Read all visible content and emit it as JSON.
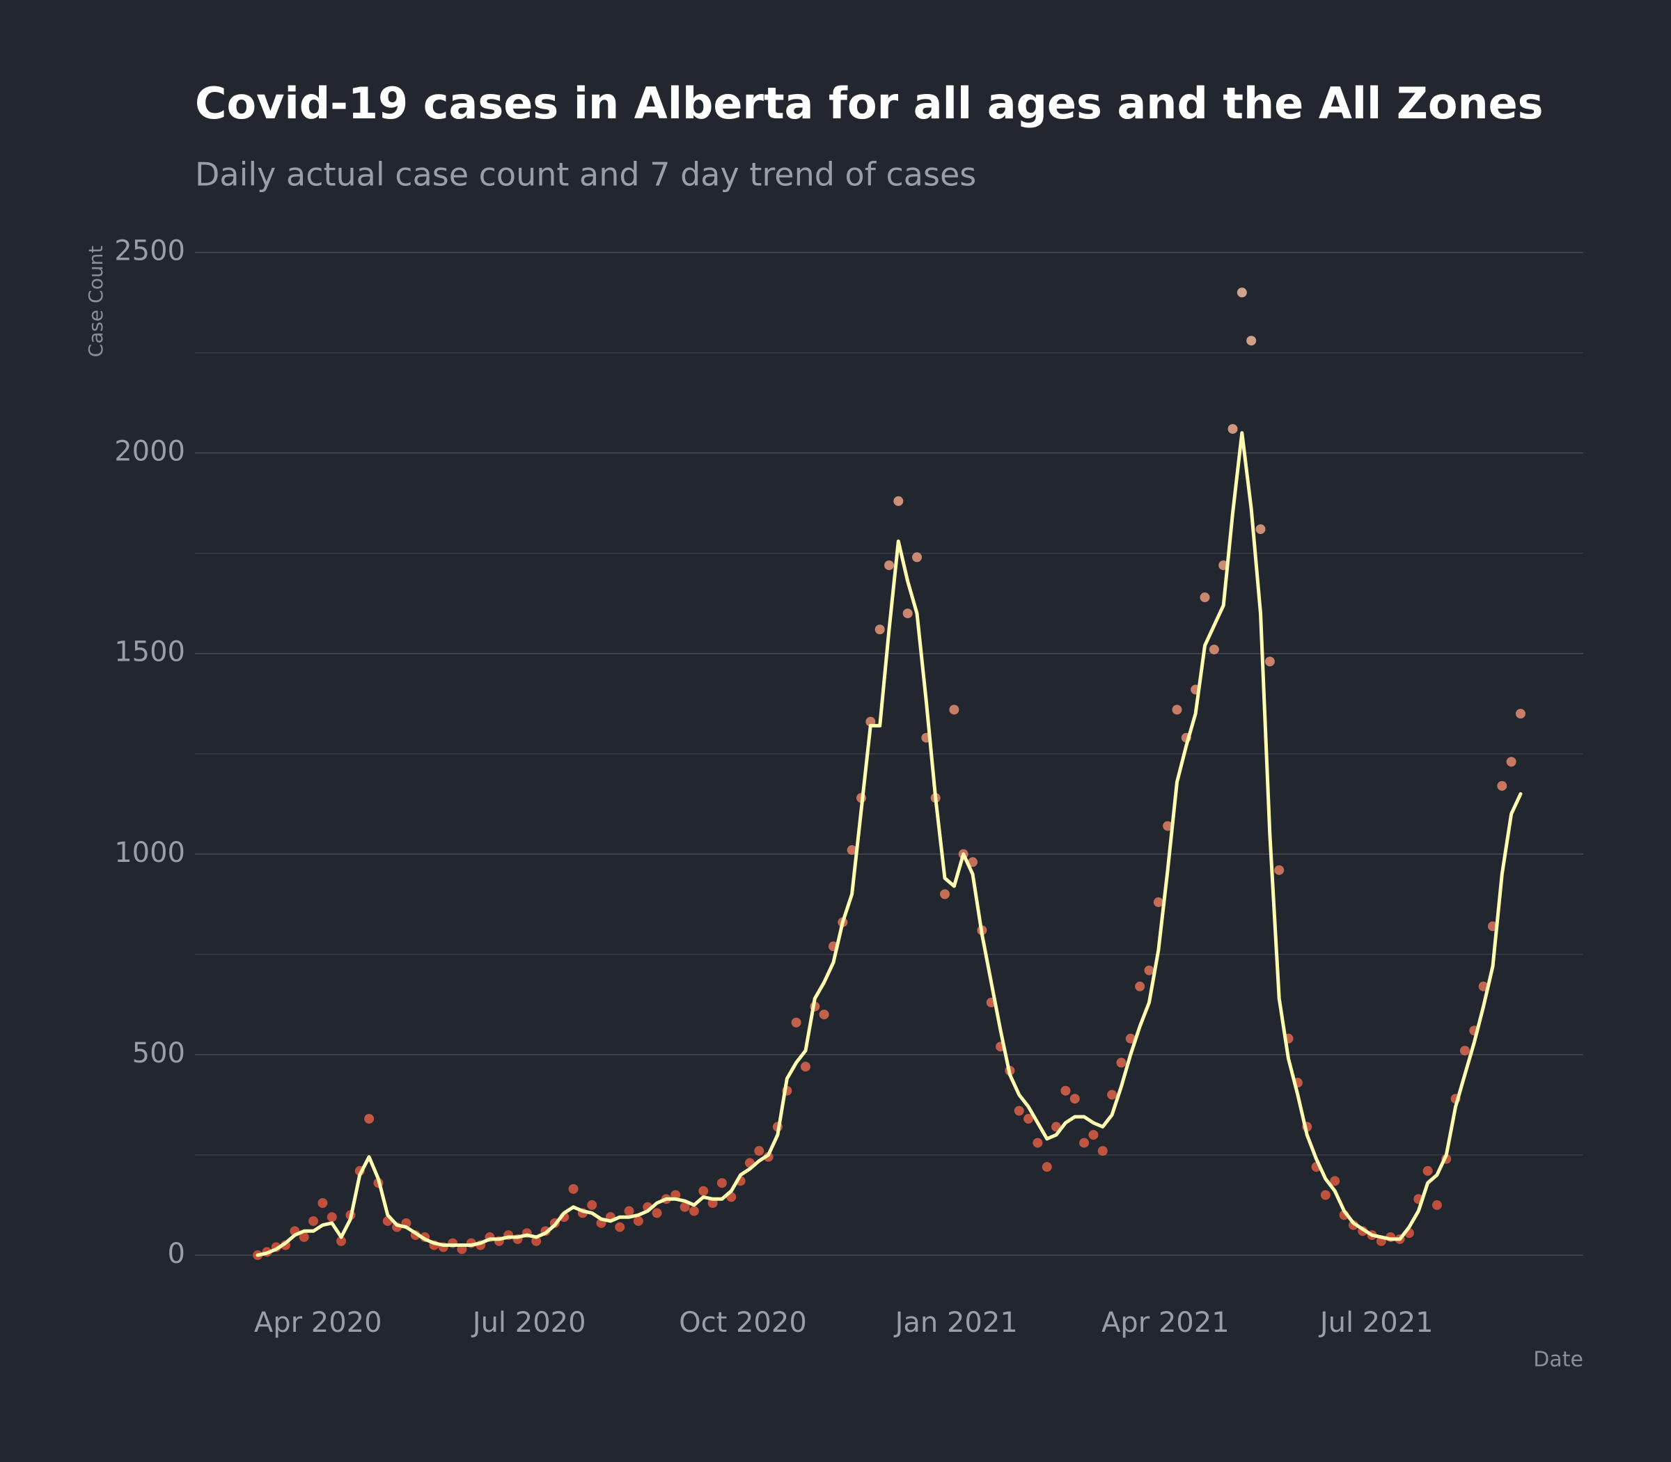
{
  "chart_data": {
    "type": "scatter",
    "title": "Covid-19 cases in Alberta for all ages and the All Zones",
    "subtitle": "Daily actual case count and 7 day trend of cases",
    "y_label": "Case Count",
    "x_label": "Date",
    "x": [
      "2020-03-06",
      "2020-03-10",
      "2020-03-14",
      "2020-03-18",
      "2020-03-22",
      "2020-03-26",
      "2020-03-30",
      "2020-04-03",
      "2020-04-07",
      "2020-04-11",
      "2020-04-15",
      "2020-04-19",
      "2020-04-23",
      "2020-04-27",
      "2020-05-01",
      "2020-05-05",
      "2020-05-09",
      "2020-05-13",
      "2020-05-17",
      "2020-05-21",
      "2020-05-25",
      "2020-05-29",
      "2020-06-02",
      "2020-06-06",
      "2020-06-10",
      "2020-06-14",
      "2020-06-18",
      "2020-06-22",
      "2020-06-26",
      "2020-06-30",
      "2020-07-04",
      "2020-07-08",
      "2020-07-12",
      "2020-07-16",
      "2020-07-20",
      "2020-07-24",
      "2020-07-28",
      "2020-08-01",
      "2020-08-05",
      "2020-08-09",
      "2020-08-13",
      "2020-08-17",
      "2020-08-21",
      "2020-08-25",
      "2020-08-29",
      "2020-09-02",
      "2020-09-06",
      "2020-09-10",
      "2020-09-14",
      "2020-09-18",
      "2020-09-22",
      "2020-09-26",
      "2020-09-30",
      "2020-10-04",
      "2020-10-08",
      "2020-10-12",
      "2020-10-16",
      "2020-10-20",
      "2020-10-24",
      "2020-10-28",
      "2020-11-01",
      "2020-11-05",
      "2020-11-09",
      "2020-11-13",
      "2020-11-17",
      "2020-11-21",
      "2020-11-25",
      "2020-11-29",
      "2020-12-03",
      "2020-12-07",
      "2020-12-11",
      "2020-12-15",
      "2020-12-19",
      "2020-12-23",
      "2020-12-27",
      "2020-12-31",
      "2021-01-04",
      "2021-01-08",
      "2021-01-12",
      "2021-01-16",
      "2021-01-20",
      "2021-01-24",
      "2021-01-28",
      "2021-02-01",
      "2021-02-05",
      "2021-02-09",
      "2021-02-13",
      "2021-02-17",
      "2021-02-21",
      "2021-02-25",
      "2021-03-01",
      "2021-03-05",
      "2021-03-09",
      "2021-03-13",
      "2021-03-17",
      "2021-03-21",
      "2021-03-25",
      "2021-03-29",
      "2021-04-02",
      "2021-04-06",
      "2021-04-10",
      "2021-04-14",
      "2021-04-18",
      "2021-04-22",
      "2021-04-26",
      "2021-04-30",
      "2021-05-04",
      "2021-05-08",
      "2021-05-12",
      "2021-05-16",
      "2021-05-20",
      "2021-05-24",
      "2021-05-28",
      "2021-06-01",
      "2021-06-05",
      "2021-06-09",
      "2021-06-13",
      "2021-06-17",
      "2021-06-21",
      "2021-06-25",
      "2021-06-29",
      "2021-07-03",
      "2021-07-07",
      "2021-07-11",
      "2021-07-15",
      "2021-07-19",
      "2021-07-23",
      "2021-07-27",
      "2021-07-31",
      "2021-08-04",
      "2021-08-08",
      "2021-08-12",
      "2021-08-16",
      "2021-08-20",
      "2021-08-24",
      "2021-08-28",
      "2021-09-01"
    ],
    "values": [
      0,
      8,
      20,
      25,
      60,
      45,
      85,
      130,
      95,
      35,
      100,
      210,
      340,
      180,
      85,
      70,
      80,
      50,
      45,
      25,
      20,
      30,
      15,
      30,
      25,
      45,
      35,
      50,
      40,
      55,
      35,
      60,
      80,
      95,
      165,
      105,
      125,
      80,
      95,
      70,
      110,
      85,
      120,
      105,
      140,
      150,
      120,
      110,
      160,
      130,
      180,
      145,
      185,
      230,
      260,
      245,
      320,
      410,
      580,
      470,
      620,
      600,
      770,
      830,
      1010,
      1140,
      1330,
      1560,
      1720,
      1880,
      1600,
      1740,
      1290,
      1140,
      900,
      1360,
      1000,
      980,
      810,
      630,
      520,
      460,
      360,
      340,
      280,
      220,
      320,
      410,
      390,
      280,
      300,
      260,
      400,
      480,
      540,
      670,
      710,
      880,
      1070,
      1360,
      1290,
      1410,
      1640,
      1510,
      1720,
      2060,
      2400,
      2280,
      1810,
      1480,
      960,
      540,
      430,
      320,
      220,
      150,
      185,
      100,
      75,
      60,
      50,
      35,
      45,
      40,
      55,
      140,
      210,
      125,
      240,
      390,
      510,
      560,
      670,
      820,
      1170,
      1230,
      1350
    ],
    "trend": [
      0,
      5,
      15,
      30,
      50,
      60,
      60,
      75,
      80,
      45,
      90,
      200,
      245,
      190,
      100,
      75,
      70,
      55,
      40,
      30,
      25,
      25,
      25,
      25,
      30,
      40,
      40,
      45,
      45,
      50,
      45,
      55,
      75,
      105,
      120,
      110,
      105,
      90,
      85,
      95,
      95,
      100,
      110,
      130,
      140,
      140,
      135,
      125,
      145,
      140,
      140,
      160,
      200,
      215,
      235,
      250,
      300,
      440,
      480,
      510,
      640,
      680,
      730,
      830,
      900,
      1110,
      1320,
      1320,
      1560,
      1780,
      1680,
      1600,
      1380,
      1140,
      940,
      920,
      1000,
      950,
      800,
      680,
      560,
      450,
      400,
      370,
      330,
      290,
      300,
      330,
      345,
      345,
      330,
      320,
      350,
      420,
      500,
      570,
      630,
      760,
      960,
      1180,
      1270,
      1350,
      1520,
      1570,
      1620,
      1850,
      2050,
      1860,
      1600,
      1050,
      640,
      490,
      400,
      300,
      240,
      190,
      160,
      110,
      80,
      65,
      50,
      45,
      40,
      40,
      70,
      110,
      180,
      200,
      250,
      370,
      450,
      530,
      620,
      720,
      950,
      1100,
      1150
    ],
    "point_colors": [
      "#d9533a",
      "#f0c2a0"
    ],
    "line_color": "#fffbb0",
    "xlim": [
      "2020-02-08",
      "2021-09-28"
    ],
    "xticks": [
      {
        "value": "2020-04-01",
        "label": "Apr 2020"
      },
      {
        "value": "2020-07-01",
        "label": "Jul 2020"
      },
      {
        "value": "2020-10-01",
        "label": "Oct 2020"
      },
      {
        "value": "2021-01-01",
        "label": "Jan 2021"
      },
      {
        "value": "2021-04-01",
        "label": "Apr 2021"
      },
      {
        "value": "2021-07-01",
        "label": "Jul 2021"
      }
    ],
    "ylim": [
      -80,
      2560
    ],
    "yticks": [
      0,
      500,
      1000,
      1500,
      2000,
      2500
    ],
    "minor_yticks": [
      250,
      750,
      1250,
      1750,
      2250
    ],
    "grid": true
  }
}
